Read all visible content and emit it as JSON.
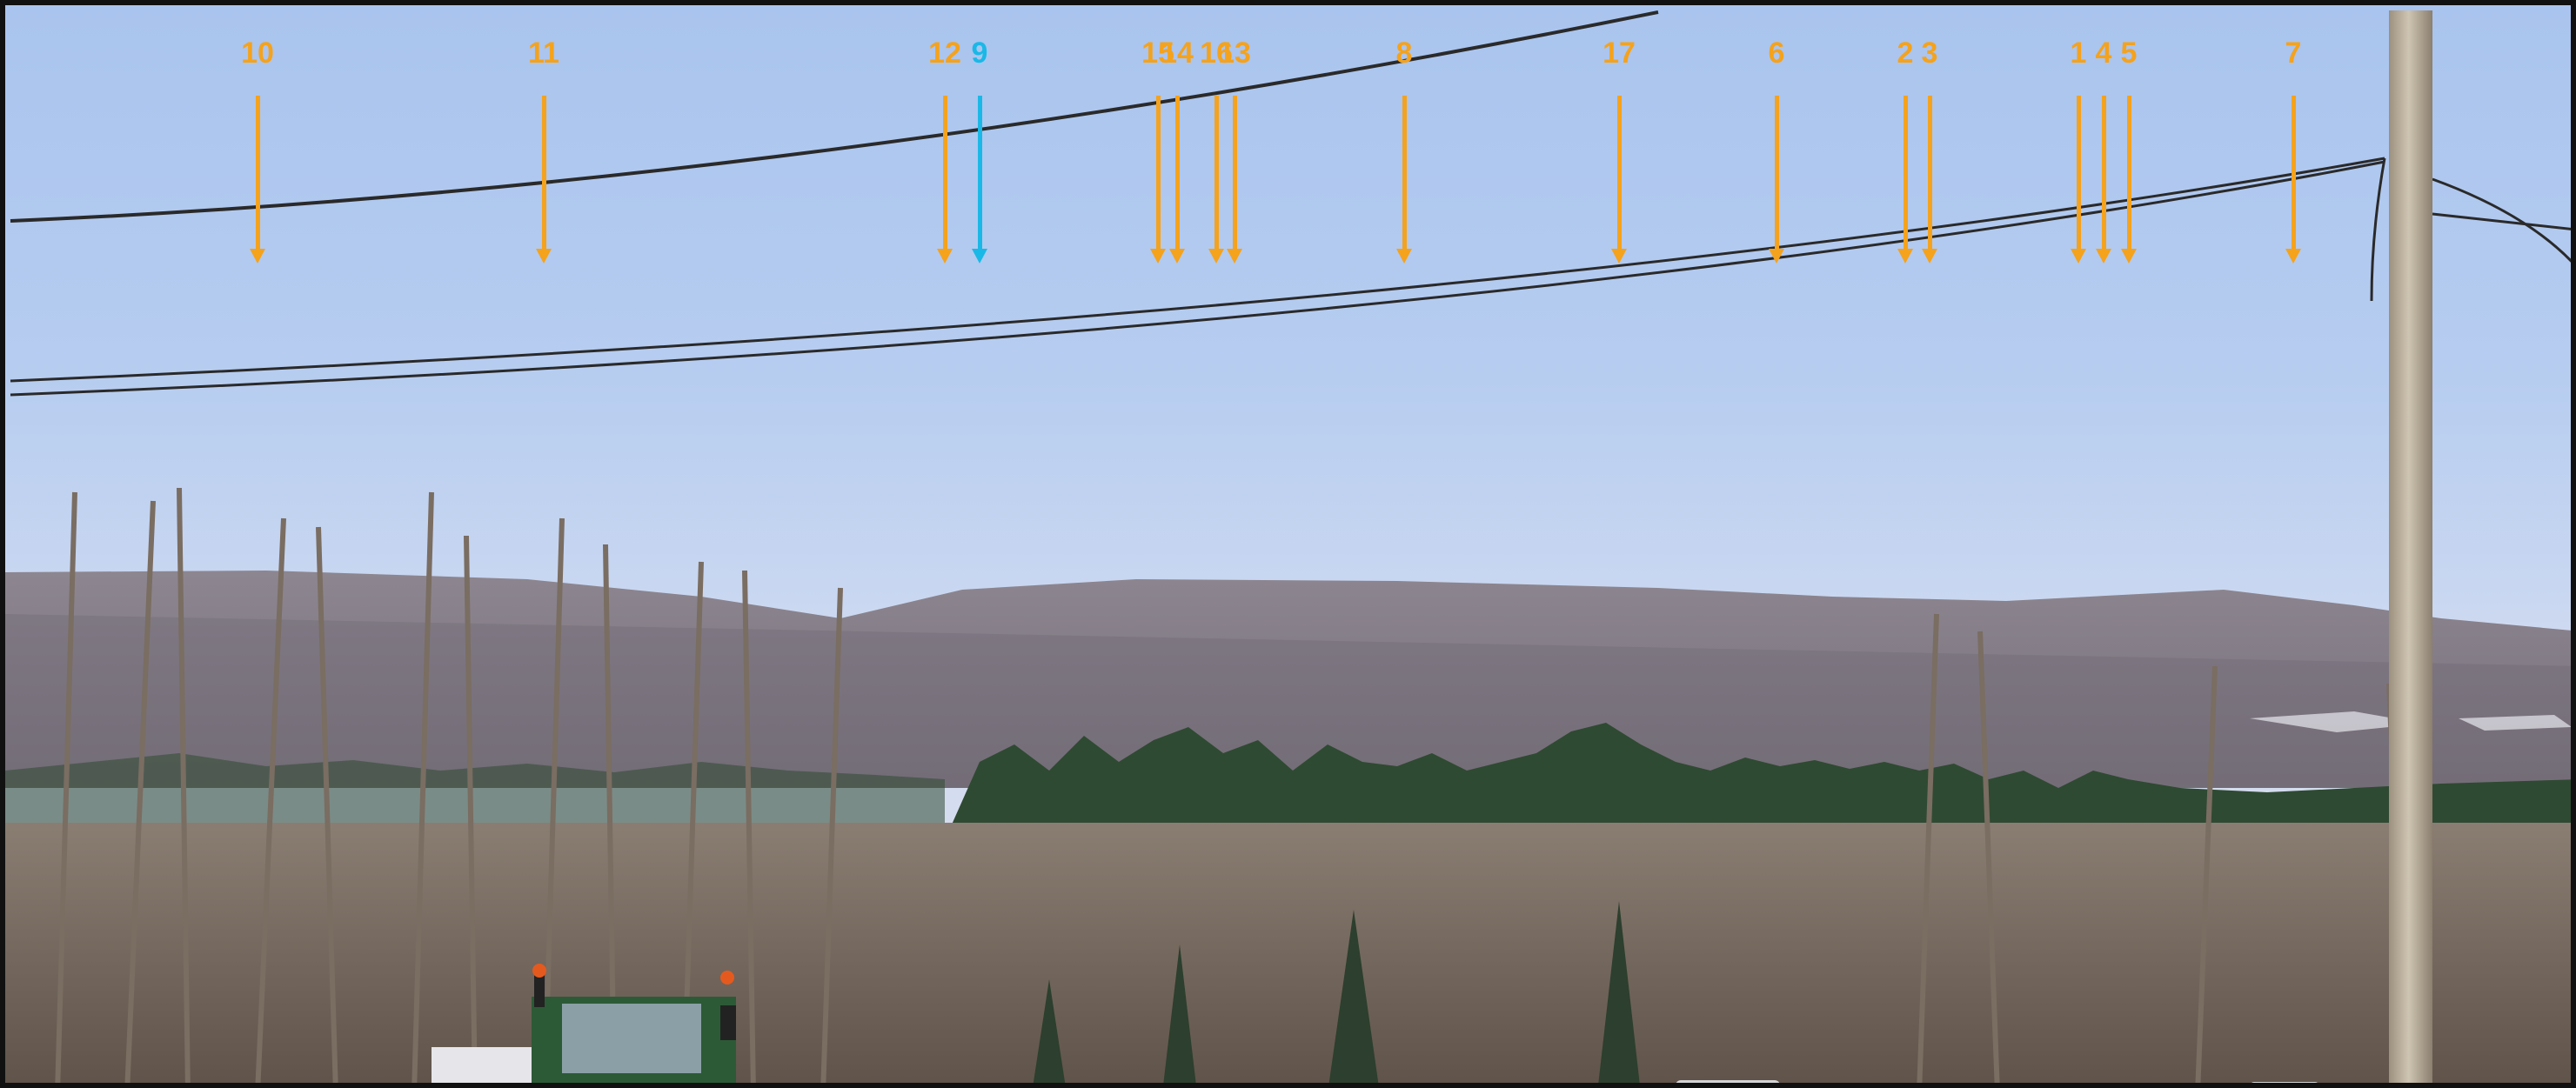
{
  "colors": {
    "marker_default": "#f5a21c",
    "marker_highlight": "#1ab8e6",
    "sky_top": "#a9c4ee",
    "sky_bottom": "#d4dcef",
    "distant_ridge": "#8e8790",
    "conifers": "#2f4a32",
    "foreground_trees": "#7d6f63",
    "utility_pole": "#b8ab98",
    "power_lines": "#2a2a2a"
  },
  "markers": [
    {
      "label": "10",
      "color": "marker_default"
    },
    {
      "label": "11",
      "color": "marker_default"
    },
    {
      "label": "12",
      "color": "marker_default"
    },
    {
      "label": "9",
      "color": "marker_highlight"
    },
    {
      "label": "15",
      "color": "marker_default"
    },
    {
      "label": "14",
      "color": "marker_default"
    },
    {
      "label": "16",
      "color": "marker_default"
    },
    {
      "label": "13",
      "color": "marker_default"
    },
    {
      "label": "8",
      "color": "marker_default"
    },
    {
      "label": "17",
      "color": "marker_default"
    },
    {
      "label": "6",
      "color": "marker_default"
    },
    {
      "label": "2",
      "color": "marker_default"
    },
    {
      "label": "3",
      "color": "marker_default"
    },
    {
      "label": "1",
      "color": "marker_default"
    },
    {
      "label": "4",
      "color": "marker_default"
    },
    {
      "label": "5",
      "color": "marker_default"
    },
    {
      "label": "7",
      "color": "marker_default"
    }
  ]
}
